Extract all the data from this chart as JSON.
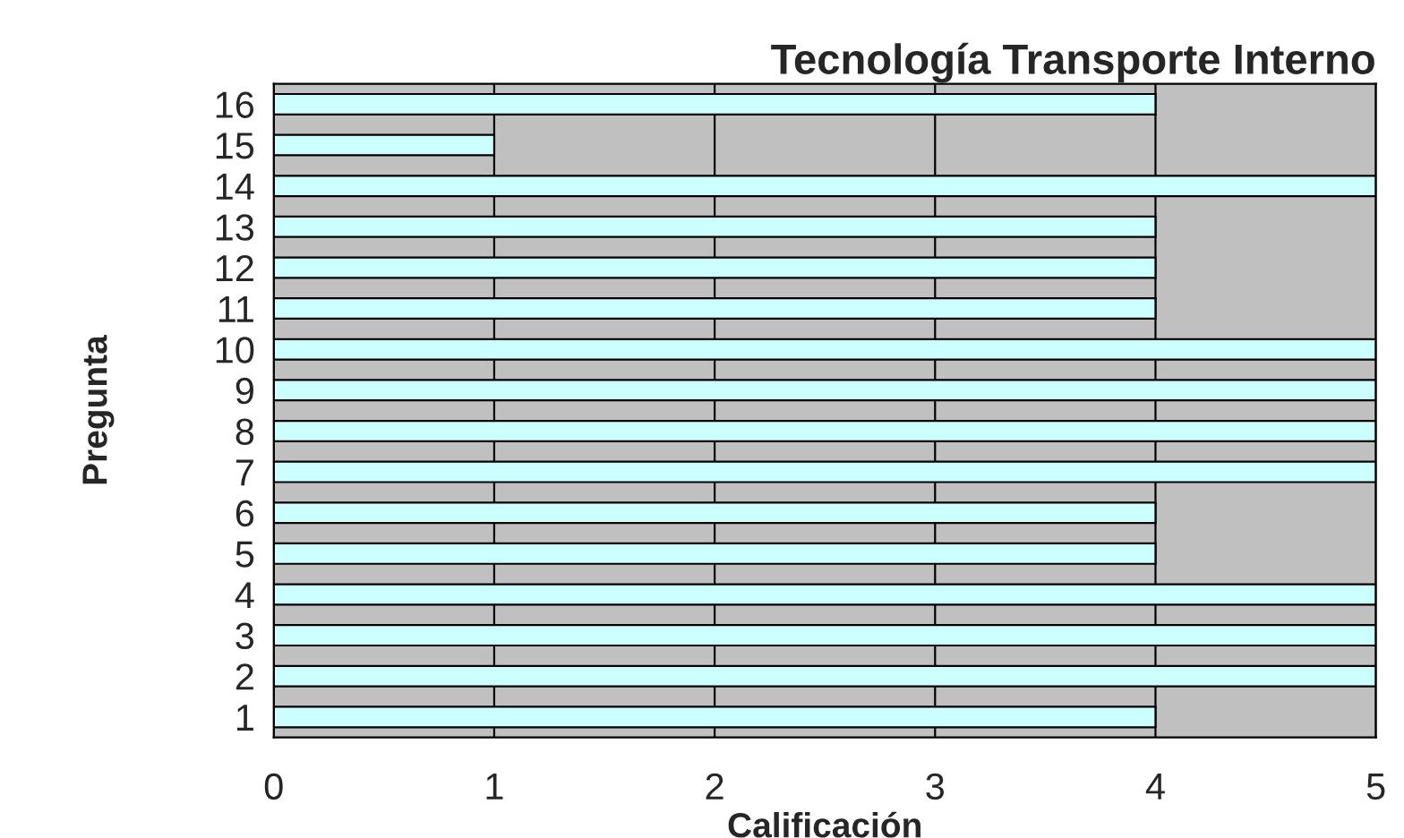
{
  "chart_data": {
    "type": "bar",
    "orientation": "horizontal",
    "title": "Tecnología Transporte Interno",
    "xlabel": "Calificación",
    "ylabel": "Pregunta",
    "categories": [
      "16",
      "15",
      "14",
      "13",
      "12",
      "11",
      "10",
      "9",
      "8",
      "7",
      "6",
      "5",
      "4",
      "3",
      "2",
      "1"
    ],
    "values": [
      4,
      1,
      5,
      4,
      4,
      4,
      5,
      5,
      5,
      5,
      4,
      4,
      5,
      5,
      5,
      4
    ],
    "color": "#ccffff",
    "xlim": [
      0,
      5
    ],
    "xticks": [
      0,
      1,
      2,
      3,
      4,
      5
    ],
    "grid": "x",
    "legend": false
  }
}
